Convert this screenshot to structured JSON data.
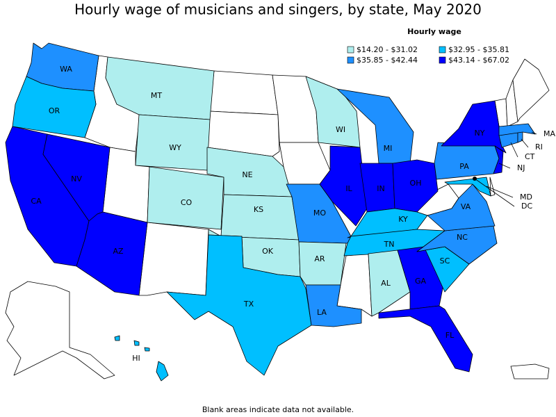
{
  "title": "Hourly wage of musicians and singers, by state, May 2020",
  "legend": {
    "title": "Hourly wage",
    "classes": [
      {
        "label": "$14.20 - $31.02",
        "color": "#afeeee"
      },
      {
        "label": "$32.95 - $35.81",
        "color": "#00bfff"
      },
      {
        "label": "$35.85 - $42.44",
        "color": "#1e90ff"
      },
      {
        "label": "$43.14 - $67.02",
        "color": "#0000ff"
      }
    ]
  },
  "states": [
    {
      "label": "WA",
      "class": 2
    },
    {
      "label": "OR",
      "class": 1
    },
    {
      "label": "CA",
      "class": 3
    },
    {
      "label": "NV",
      "class": 3
    },
    {
      "label": "MT",
      "class": 0
    },
    {
      "label": "WY",
      "class": 0
    },
    {
      "label": "AZ",
      "class": 3
    },
    {
      "label": "CO",
      "class": 0
    },
    {
      "label": "NE",
      "class": 0
    },
    {
      "label": "KS",
      "class": 0
    },
    {
      "label": "OK",
      "class": 0
    },
    {
      "label": "TX",
      "class": 1
    },
    {
      "label": "MO",
      "class": 2
    },
    {
      "label": "AR",
      "class": 0
    },
    {
      "label": "LA",
      "class": 2
    },
    {
      "label": "WI",
      "class": 0
    },
    {
      "label": "IL",
      "class": 3
    },
    {
      "label": "MI",
      "class": 2
    },
    {
      "label": "IN",
      "class": 3
    },
    {
      "label": "OH",
      "class": 3
    },
    {
      "label": "KY",
      "class": 1
    },
    {
      "label": "TN",
      "class": 1
    },
    {
      "label": "AL",
      "class": 0
    },
    {
      "label": "GA",
      "class": 3
    },
    {
      "label": "FL",
      "class": 3
    },
    {
      "label": "SC",
      "class": 1
    },
    {
      "label": "NC",
      "class": 2
    },
    {
      "label": "VA",
      "class": 2
    },
    {
      "label": "PA",
      "class": 2
    },
    {
      "label": "NY",
      "class": 3
    },
    {
      "label": "NJ",
      "class": 3
    },
    {
      "label": "MD",
      "class": 1
    },
    {
      "label": "CT",
      "class": 2
    },
    {
      "label": "RI",
      "class": 2
    },
    {
      "label": "MA",
      "class": 2
    },
    {
      "label": "HI",
      "class": 1
    },
    {
      "label": "DC"
    }
  ],
  "footnote": "Blank areas indicate data not available."
}
